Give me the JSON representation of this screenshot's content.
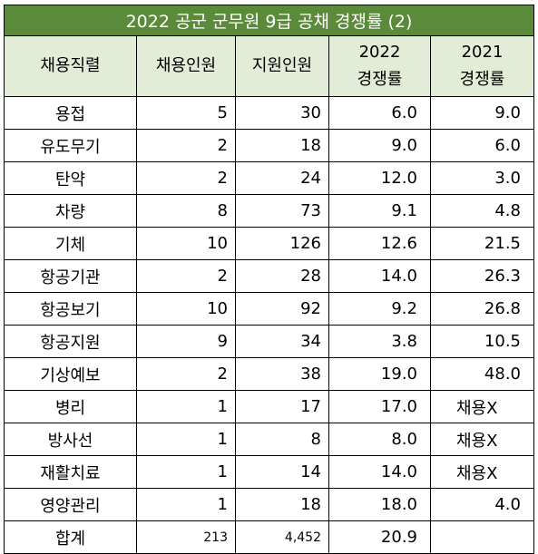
{
  "title": "2022 공군 군무원 9급 공채  경쟁률 (2)",
  "headers": {
    "col1": "채용직렬",
    "col2": "채용인원",
    "col3": "지원인원",
    "col4_year": "2022",
    "col4_label": "경쟁률",
    "col5_year": "2021",
    "col5_label": "경쟁률"
  },
  "rows": [
    {
      "name": "용접",
      "hire": "5",
      "apply": "30",
      "rate2022": "6.0",
      "rate2021": "9.0"
    },
    {
      "name": "유도무기",
      "hire": "2",
      "apply": "18",
      "rate2022": "9.0",
      "rate2021": "6.0"
    },
    {
      "name": "탄약",
      "hire": "2",
      "apply": "24",
      "rate2022": "12.0",
      "rate2021": "3.0"
    },
    {
      "name": "차량",
      "hire": "8",
      "apply": "73",
      "rate2022": "9.1",
      "rate2021": "4.8"
    },
    {
      "name": "기체",
      "hire": "10",
      "apply": "126",
      "rate2022": "12.6",
      "rate2021": "21.5"
    },
    {
      "name": "항공기관",
      "hire": "2",
      "apply": "28",
      "rate2022": "14.0",
      "rate2021": "26.3"
    },
    {
      "name": "항공보기",
      "hire": "10",
      "apply": "92",
      "rate2022": "9.2",
      "rate2021": "26.8"
    },
    {
      "name": "항공지원",
      "hire": "9",
      "apply": "34",
      "rate2022": "3.8",
      "rate2021": "10.5"
    },
    {
      "name": "기상예보",
      "hire": "2",
      "apply": "38",
      "rate2022": "19.0",
      "rate2021": "48.0"
    },
    {
      "name": "병리",
      "hire": "1",
      "apply": "17",
      "rate2022": "17.0",
      "rate2021": "채용X"
    },
    {
      "name": "방사선",
      "hire": "1",
      "apply": "8",
      "rate2022": "8.0",
      "rate2021": "채용X"
    },
    {
      "name": "재활치료",
      "hire": "1",
      "apply": "14",
      "rate2022": "14.0",
      "rate2021": "채용X"
    },
    {
      "name": "영양관리",
      "hire": "1",
      "apply": "18",
      "rate2022": "18.0",
      "rate2021": "4.0"
    }
  ],
  "total": {
    "name": "합계",
    "hire": "213",
    "apply": "4,452",
    "rate2022": "20.9",
    "rate2021": ""
  }
}
